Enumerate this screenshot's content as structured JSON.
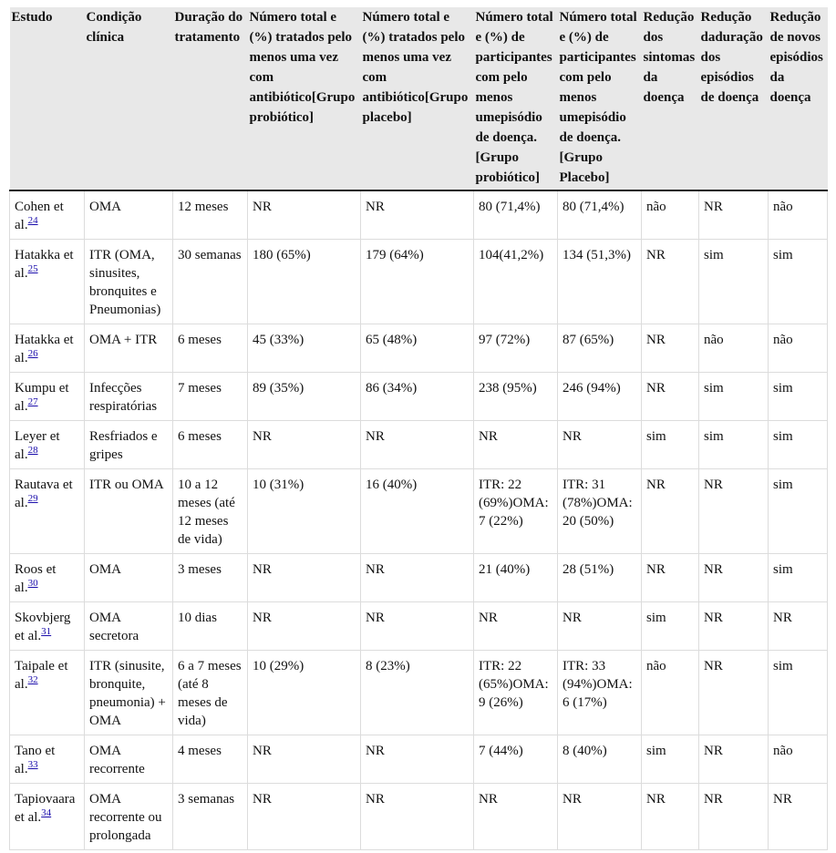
{
  "table": {
    "headers": [
      "Estudo",
      "Condição clínica",
      "Duração do tratamento",
      "Número total e (%) tratados pelo menos uma vez com antibiótico[Grupo probiótico]",
      "Número total e (%) tratados pelo menos uma vez com antibiótico[Grupo placebo]",
      "Número total e (%) de participantes com pelo menos umepisódio de doença. [Grupo probiótico]",
      "Número total e (%) de participantes com pelo menos umepisódio de doença. [Grupo Placebo]",
      "Redução dos sintomas da doença",
      "Redução daduração dos episódios de doença",
      "Redução de novos episódios da doença"
    ],
    "rows": [
      {
        "study": "Cohen et al.",
        "ref": "24",
        "condition": "OMA",
        "duration": "12 meses",
        "abx_probiotic": "NR",
        "abx_placebo": "NR",
        "ep_probiotic": "80 (71,4%)",
        "ep_placebo": "80 (71,4%)",
        "symptoms": "não",
        "duration_red": "NR",
        "new_episodes": "não"
      },
      {
        "study": "Hatakka et al.",
        "ref": "25",
        "condition": "ITR (OMA, sinusites, bronquites e Pneumonias)",
        "duration": "30 semanas",
        "abx_probiotic": "180 (65%)",
        "abx_placebo": "179 (64%)",
        "ep_probiotic": "104(41,2%)",
        "ep_placebo": "134 (51,3%)",
        "symptoms": "NR",
        "duration_red": "sim",
        "new_episodes": "sim"
      },
      {
        "study": "Hatakka et al.",
        "ref": "26",
        "condition": "OMA + ITR",
        "duration": "6 meses",
        "abx_probiotic": "45 (33%)",
        "abx_placebo": "65 (48%)",
        "ep_probiotic": "97 (72%)",
        "ep_placebo": "87 (65%)",
        "symptoms": "NR",
        "duration_red": "não",
        "new_episodes": "não"
      },
      {
        "study": "Kumpu et al.",
        "ref": "27",
        "condition": "Infecções respiratórias",
        "duration": "7 meses",
        "abx_probiotic": "89 (35%)",
        "abx_placebo": "86 (34%)",
        "ep_probiotic": "238 (95%)",
        "ep_placebo": "246 (94%)",
        "symptoms": "NR",
        "duration_red": "sim",
        "new_episodes": "sim"
      },
      {
        "study": "Leyer et al.",
        "ref": "28",
        "condition": "Resfriados e gripes",
        "duration": "6 meses",
        "abx_probiotic": "NR",
        "abx_placebo": "NR",
        "ep_probiotic": "NR",
        "ep_placebo": "NR",
        "symptoms": "sim",
        "duration_red": "sim",
        "new_episodes": "sim"
      },
      {
        "study": "Rautava et al.",
        "ref": "29",
        "condition": "ITR ou OMA",
        "duration": "10 a 12 meses (até 12 meses de vida)",
        "abx_probiotic": "10 (31%)",
        "abx_placebo": "16 (40%)",
        "ep_probiotic": "ITR: 22 (69%)OMA: 7 (22%)",
        "ep_placebo": "ITR: 31 (78%)OMA: 20 (50%)",
        "symptoms": "NR",
        "duration_red": "NR",
        "new_episodes": "sim"
      },
      {
        "study": "Roos et al.",
        "ref": "30",
        "condition": "OMA",
        "duration": "3 meses",
        "abx_probiotic": "NR",
        "abx_placebo": "NR",
        "ep_probiotic": "21 (40%)",
        "ep_placebo": "28 (51%)",
        "symptoms": "NR",
        "duration_red": "NR",
        "new_episodes": "sim"
      },
      {
        "study": "Skovbjerg et al.",
        "ref": "31",
        "condition": "OMA secretora",
        "duration": "10 dias",
        "abx_probiotic": "NR",
        "abx_placebo": "NR",
        "ep_probiotic": "NR",
        "ep_placebo": "NR",
        "symptoms": "sim",
        "duration_red": "NR",
        "new_episodes": "NR"
      },
      {
        "study": "Taipale et al.",
        "ref": "32",
        "condition": "ITR (sinusite, bronquite, pneumonia) + OMA",
        "duration": "6 a 7 meses (até 8 meses de vida)",
        "abx_probiotic": "10 (29%)",
        "abx_placebo": "8 (23%)",
        "ep_probiotic": "ITR: 22 (65%)OMA: 9 (26%)",
        "ep_placebo": "ITR: 33 (94%)OMA: 6 (17%)",
        "symptoms": "não",
        "duration_red": "NR",
        "new_episodes": "sim"
      },
      {
        "study": "Tano et al.",
        "ref": "33",
        "condition": "OMA recorrente",
        "duration": "4 meses",
        "abx_probiotic": "NR",
        "abx_placebo": "NR",
        "ep_probiotic": "7 (44%)",
        "ep_placebo": "8 (40%)",
        "symptoms": "sim",
        "duration_red": "NR",
        "new_episodes": "não"
      },
      {
        "study": "Tapiovaara et al.",
        "ref": "34",
        "condition": "OMA recorrente ou prolongada",
        "duration": "3 semanas",
        "abx_probiotic": "NR",
        "abx_placebo": "NR",
        "ep_probiotic": "NR",
        "ep_placebo": "NR",
        "symptoms": "NR",
        "duration_red": "NR",
        "new_episodes": "NR"
      }
    ]
  }
}
